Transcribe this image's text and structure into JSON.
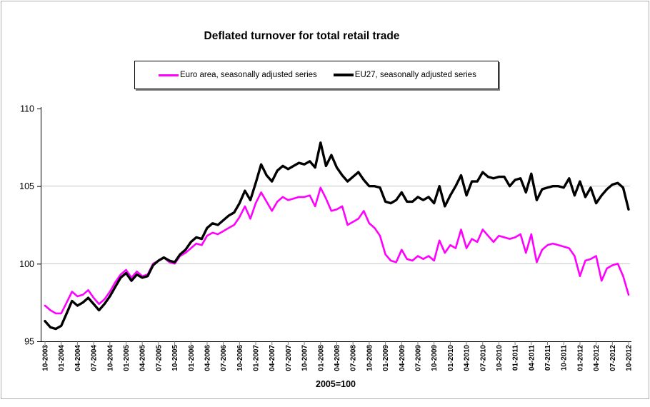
{
  "page": {
    "background": "#ffffff",
    "frame_border_color": "#b0b0b0"
  },
  "chart": {
    "title": "Deflated turnover for total retail trade",
    "axis_note": "2005=100"
  },
  "chart_data": {
    "type": "line",
    "title": "Deflated turnover for total retail trade",
    "xlabel": "2005=100",
    "ylabel": "",
    "ylim": [
      95,
      110
    ],
    "yticks": [
      95,
      100,
      105,
      110
    ],
    "gridlines": [
      100,
      105
    ],
    "grid_color": "#c6c6c6",
    "legend_position": "top",
    "x_unit": "monthly",
    "x_start": "10-2003",
    "x_end": "10-2012",
    "x_tick_labels": [
      "10-2003",
      "01-2004",
      "04-2004",
      "07-2004",
      "10-2004",
      "01-2005",
      "04-2005",
      "07-2005",
      "10-2005",
      "01-2006",
      "04-2006",
      "07-2006",
      "10-2006",
      "01-2007",
      "04-2007",
      "07-2007",
      "10-2007",
      "01-2008",
      "04-2008",
      "07-2008",
      "10-2008",
      "01-2009",
      "04-2009",
      "07-2009",
      "10-2009",
      "01-2010",
      "04-2010",
      "07-2010",
      "10-2010",
      "01-2011",
      "04-2011",
      "07-2011",
      "10-2011",
      "01-2012",
      "04-2012",
      "07-2012",
      "10-2012"
    ],
    "series": [
      {
        "name": "Euro area, seasonally adjusted series",
        "color": "#FF00FF",
        "values": [
          97.3,
          97,
          96.8,
          96.8,
          97.5,
          98.2,
          97.9,
          98,
          98.3,
          97.8,
          97.4,
          97.7,
          98.2,
          98.8,
          99.3,
          99.6,
          99.1,
          99.5,
          99.2,
          99.3,
          100,
          100.2,
          100.4,
          100.1,
          100,
          100.5,
          100.7,
          101,
          101.3,
          101.2,
          101.8,
          102,
          101.9,
          102.1,
          102.3,
          102.5,
          103,
          103.7,
          102.9,
          103.9,
          104.6,
          104,
          103.4,
          104,
          104.3,
          104.1,
          104.2,
          104.3,
          104.3,
          104.4,
          103.7,
          104.9,
          104.2,
          103.4,
          103.5,
          103.7,
          102.5,
          102.7,
          102.9,
          103.4,
          102.6,
          102.3,
          101.8,
          100.6,
          100.2,
          100.1,
          100.9,
          100.3,
          100.2,
          100.5,
          100.3,
          100.5,
          100.2,
          101.5,
          100.7,
          101.2,
          101,
          102.2,
          101,
          101.6,
          101.4,
          102.2,
          101.8,
          101.4,
          101.8,
          101.7,
          101.6,
          101.7,
          101.9,
          100.7,
          101.9,
          100.1,
          100.9,
          101.2,
          101.3,
          101.2,
          101.1,
          101,
          100.5,
          99.2,
          100.2,
          100.3,
          100.5,
          98.9,
          99.7,
          99.9,
          100,
          99.2,
          98
        ]
      },
      {
        "name": "EU27, seasonally adjusted series",
        "color": "#000000",
        "values": [
          96.3,
          95.9,
          95.8,
          96,
          96.8,
          97.6,
          97.3,
          97.5,
          97.8,
          97.4,
          97,
          97.4,
          97.9,
          98.5,
          99.1,
          99.4,
          98.9,
          99.3,
          99.1,
          99.2,
          99.9,
          100.2,
          100.4,
          100.2,
          100.1,
          100.6,
          100.9,
          101.4,
          101.7,
          101.6,
          102.3,
          102.6,
          102.5,
          102.8,
          103.1,
          103.3,
          103.9,
          104.7,
          104.1,
          105.2,
          106.4,
          105.7,
          105.3,
          106,
          106.3,
          106.1,
          106.3,
          106.5,
          106.4,
          106.6,
          106.2,
          107.8,
          106.3,
          107,
          106.2,
          105.7,
          105.3,
          105.6,
          105.9,
          105.4,
          105,
          105,
          104.9,
          104,
          103.9,
          104.1,
          104.6,
          104,
          104,
          104.3,
          104.1,
          104.3,
          103.9,
          105,
          103.7,
          104.4,
          105,
          105.7,
          104.4,
          105.3,
          105.3,
          105.9,
          105.6,
          105.5,
          105.6,
          105.6,
          105,
          105.4,
          105.5,
          104.6,
          105.8,
          104.1,
          104.8,
          104.9,
          105,
          105,
          104.9,
          105.5,
          104.4,
          105.3,
          104.3,
          104.9,
          103.9,
          104.4,
          104.8,
          105.1,
          105.2,
          104.9,
          103.5
        ]
      }
    ]
  }
}
